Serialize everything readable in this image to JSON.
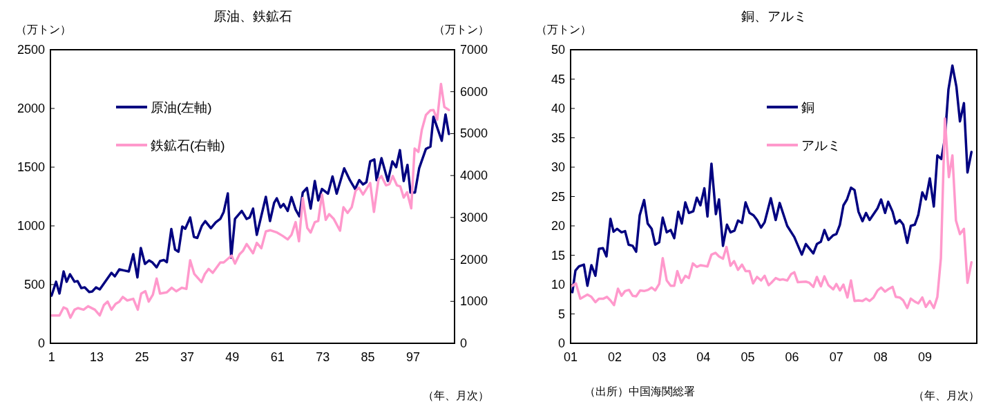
{
  "chart_data": [
    {
      "type": "line",
      "title": "原油、鉄鉱石",
      "ylabel": "（万トン）",
      "y2label": "（万トン）",
      "xlabel": "（年、月次）",
      "legend": "top left",
      "xlim": [
        0.7,
        108
      ],
      "xticks": [
        1,
        13,
        25,
        37,
        49,
        61,
        73,
        85,
        97
      ],
      "ylim": [
        0,
        2500
      ],
      "yticks": [
        0,
        500,
        1000,
        1500,
        2000,
        2500
      ],
      "y2lim": [
        0,
        7000
      ],
      "y2ticks": [
        0,
        1000,
        2000,
        3000,
        4000,
        5000,
        6000,
        7000
      ],
      "series": [
        {
          "name": "原油(左軸)",
          "color": "#000080",
          "x": [
            1,
            2.2,
            3.1,
            4.2,
            5,
            5.9,
            7.1,
            7.9,
            8.9,
            9.8,
            11,
            11.8,
            12.8,
            13.8,
            16.9,
            17.8,
            19,
            20.3,
            21.5,
            22.7,
            23.8,
            24.7,
            25.8,
            26.9,
            27.8,
            28.9,
            29.8,
            30.8,
            31.6,
            32.8,
            33.8,
            34.7,
            35.7,
            36.5,
            37.8,
            38.8,
            39.7,
            40.9,
            41.8,
            43.3,
            44.6,
            45.8,
            46.7,
            47.8,
            48.7,
            49.7,
            51.5,
            52.8,
            53.6,
            54.5,
            55.5,
            57.9,
            59,
            60.1,
            60.8,
            61.8,
            62.6,
            63.7,
            64.7,
            65.8,
            66.8,
            67.7,
            68.8,
            69.8,
            70.9,
            71.8,
            72.8,
            74.4,
            75.6,
            76.7,
            78.7,
            80.2,
            81.6,
            82.7,
            83.7,
            84.6,
            85.6,
            86.7,
            87.3,
            88.6,
            90.3,
            91.5,
            92.5,
            93.5,
            94.5,
            95.5,
            96.3,
            97.5,
            98.6,
            100.4,
            101.6,
            102.4,
            104.6,
            105.6,
            106.5
          ],
          "values": [
            406,
            524,
            424,
            612,
            524,
            588,
            524,
            530,
            470,
            476,
            437,
            441,
            476,
            459,
            600,
            570,
            629,
            620,
            612,
            759,
            561,
            812,
            676,
            706,
            688,
            647,
            700,
            710,
            690,
            973,
            798,
            780,
            994,
            975,
            1071,
            906,
            897,
            1000,
            1040,
            980,
            1030,
            1059,
            1118,
            1276,
            729,
            1059,
            1127,
            1059,
            1071,
            1147,
            924,
            1247,
            1041,
            1196,
            1235,
            1157,
            1186,
            1127,
            1245,
            1139,
            1081,
            1284,
            1323,
            1147,
            1382,
            1216,
            1314,
            1274,
            1421,
            1274,
            1490,
            1390,
            1314,
            1390,
            1353,
            1372,
            1549,
            1566,
            1390,
            1576,
            1382,
            1549,
            1500,
            1645,
            1382,
            1519,
            1284,
            1284,
            1490,
            1655,
            1675,
            1930,
            1725,
            1949,
            1782
          ]
        },
        {
          "name": "鉄鉱石(右軸)",
          "color": "#ff99cc",
          "axis": "y2",
          "x": [
            1,
            3.1,
            4.2,
            5.1,
            6,
            7.1,
            8,
            9.5,
            10.7,
            12.5,
            13.8,
            14.9,
            15.9,
            16.9,
            18,
            19,
            19.9,
            21.1,
            22.7,
            23.9,
            24.8,
            25.9,
            26.8,
            27.9,
            28.9,
            29.8,
            31.6,
            32.9,
            34.1,
            35.6,
            36.8,
            37.8,
            38.9,
            40.8,
            41.7,
            42.7,
            43.8,
            45.8,
            46.7,
            48.8,
            49.7,
            50.9,
            51.8,
            52.8,
            54.5,
            55.5,
            56.7,
            57.9,
            59.1,
            60.9,
            62.4,
            63.7,
            64.7,
            65.8,
            66.7,
            67.7,
            68.9,
            69.8,
            70.9,
            71.8,
            72.8,
            73.8,
            74.7,
            75.9,
            77.6,
            78.5,
            79.6,
            80.7,
            81.7,
            82.6,
            83.7,
            85.6,
            86.6,
            87.8,
            88.6,
            89.8,
            90.7,
            91.6,
            92.7,
            93.6,
            94.5,
            95.4,
            96.5,
            97.4,
            98.4,
            99.3,
            100.4,
            101.6,
            102.4,
            103.4,
            104.4,
            105.3,
            106.5
          ],
          "values": [
            664,
            664,
            857,
            818,
            610,
            801,
            840,
            801,
            884,
            801,
            664,
            912,
            994,
            801,
            939,
            994,
            1104,
            1021,
            1060,
            801,
            1186,
            1241,
            994,
            1159,
            1543,
            1186,
            1214,
            1324,
            1241,
            1324,
            1296,
            1982,
            1652,
            1460,
            1652,
            1773,
            1680,
            1927,
            1927,
            2092,
            1900,
            2120,
            2202,
            2367,
            2147,
            2394,
            2267,
            2668,
            2696,
            2641,
            2559,
            2476,
            2586,
            2888,
            2432,
            3465,
            2751,
            2641,
            2888,
            2916,
            3547,
            2943,
            3080,
            2970,
            2685,
            3245,
            3108,
            3245,
            3630,
            3712,
            3547,
            3822,
            3135,
            3905,
            3987,
            3767,
            3795,
            3987,
            3767,
            3740,
            3476,
            3602,
            3218,
            4646,
            4564,
            5086,
            5443,
            5553,
            5564,
            5333,
            6184,
            5635,
            5564
          ]
        }
      ]
    },
    {
      "type": "line",
      "title": "銅、アルミ",
      "ylabel": "（万トン）",
      "xlabel": "（年、月次）",
      "legend": "top",
      "annotations": [
        "（出所）中国海関総署"
      ],
      "xlim": [
        2001,
        2010.17
      ],
      "xticks": [
        {
          "value": 2001,
          "label": "01"
        },
        {
          "value": 2002,
          "label": "02"
        },
        {
          "value": 2003,
          "label": "03"
        },
        {
          "value": 2004,
          "label": "04"
        },
        {
          "value": 2005,
          "label": "05"
        },
        {
          "value": 2006,
          "label": "06"
        },
        {
          "value": 2007,
          "label": "07"
        },
        {
          "value": 2008,
          "label": "08"
        },
        {
          "value": 2009,
          "label": "09"
        }
      ],
      "ylim": [
        0,
        50
      ],
      "yticks": [
        0,
        5,
        10,
        15,
        20,
        25,
        30,
        35,
        40,
        45,
        50
      ],
      "series": [
        {
          "name": "銅",
          "color": "#000080",
          "x": [
            2001.04,
            2001.11,
            2001.19,
            2001.3,
            2001.38,
            2001.47,
            2001.56,
            2001.64,
            2001.73,
            2001.81,
            2001.9,
            2001.97,
            2002.05,
            2002.15,
            2002.23,
            2002.31,
            2002.4,
            2002.48,
            2002.56,
            2002.66,
            2002.74,
            2002.83,
            2002.91,
            2003.0,
            2003.08,
            2003.17,
            2003.26,
            2003.34,
            2003.43,
            2003.51,
            2003.59,
            2003.67,
            2003.77,
            2003.85,
            2003.93,
            2004.02,
            2004.09,
            2004.18,
            2004.28,
            2004.35,
            2004.44,
            2004.53,
            2004.61,
            2004.7,
            2004.78,
            2004.87,
            2004.95,
            2005.04,
            2005.13,
            2005.21,
            2005.3,
            2005.38,
            2005.52,
            2005.63,
            2005.72,
            2005.89,
            2006.05,
            2006.22,
            2006.31,
            2006.48,
            2006.56,
            2006.65,
            2006.73,
            2006.82,
            2006.93,
            2007.0,
            2007.08,
            2007.16,
            2007.24,
            2007.33,
            2007.41,
            2007.5,
            2007.59,
            2007.67,
            2007.75,
            2007.93,
            2008.01,
            2008.1,
            2008.17,
            2008.27,
            2008.34,
            2008.43,
            2008.51,
            2008.6,
            2008.68,
            2008.77,
            2008.85,
            2008.94,
            2009.02,
            2009.11,
            2009.2,
            2009.28,
            2009.37,
            2009.45,
            2009.53,
            2009.62,
            2009.71,
            2009.79,
            2009.88,
            2009.96,
            2010.05
          ],
          "values": [
            8.7,
            12.4,
            13.1,
            13.4,
            9.8,
            13.3,
            11.5,
            16.1,
            16.2,
            14.8,
            21.2,
            19.0,
            19.5,
            18.9,
            19.1,
            16.8,
            16.6,
            15.6,
            21.8,
            24.4,
            20.4,
            19.5,
            16.8,
            17.2,
            21.4,
            18.9,
            19.3,
            17.9,
            22.4,
            20.4,
            24.0,
            22.2,
            22.5,
            24.8,
            23.5,
            26.4,
            21.6,
            30.6,
            22.0,
            24.5,
            16.6,
            20.2,
            18.9,
            19.2,
            20.9,
            20.5,
            24.0,
            22.2,
            21.8,
            21.0,
            19.7,
            20.6,
            24.7,
            21.0,
            23.9,
            20.0,
            18.1,
            15.1,
            16.9,
            15.3,
            16.9,
            17.3,
            19.3,
            17.6,
            18.4,
            18.6,
            20.2,
            23.5,
            24.5,
            26.5,
            26.1,
            22.4,
            20.8,
            22.2,
            21.0,
            23.0,
            24.5,
            22.2,
            24.1,
            22.4,
            20.4,
            21.0,
            20.2,
            17.1,
            20.0,
            20.2,
            21.9,
            25.7,
            24.5,
            28.1,
            23.3,
            32.0,
            31.4,
            34.9,
            43.2,
            47.3,
            43.7,
            37.8,
            40.9,
            29.1,
            32.6
          ]
        },
        {
          "name": "アルミ",
          "color": "#ff99cc",
          "x": [
            2001.04,
            2001.12,
            2001.22,
            2001.38,
            2001.47,
            2001.56,
            2001.64,
            2001.74,
            2001.82,
            2001.9,
            2001.98,
            2002.07,
            2002.15,
            2002.23,
            2002.32,
            2002.4,
            2002.48,
            2002.57,
            2002.66,
            2002.75,
            2002.83,
            2002.91,
            2003.0,
            2003.08,
            2003.17,
            2003.26,
            2003.34,
            2003.41,
            2003.5,
            2003.59,
            2003.67,
            2003.76,
            2003.85,
            2003.93,
            2004.09,
            2004.18,
            2004.27,
            2004.35,
            2004.44,
            2004.52,
            2004.61,
            2004.69,
            2004.78,
            2004.87,
            2004.95,
            2005.04,
            2005.12,
            2005.21,
            2005.3,
            2005.38,
            2005.47,
            2005.53,
            2005.63,
            2005.72,
            2005.79,
            2005.89,
            2005.98,
            2006.05,
            2006.13,
            2006.31,
            2006.39,
            2006.48,
            2006.56,
            2006.65,
            2006.73,
            2006.82,
            2006.93,
            2007.0,
            2007.08,
            2007.16,
            2007.25,
            2007.33,
            2007.41,
            2007.5,
            2007.59,
            2007.67,
            2007.75,
            2007.84,
            2007.93,
            2008.01,
            2008.1,
            2008.17,
            2008.27,
            2008.34,
            2008.43,
            2008.51,
            2008.6,
            2008.68,
            2008.77,
            2008.85,
            2008.94,
            2009.02,
            2009.11,
            2009.2,
            2009.28,
            2009.36,
            2009.45,
            2009.54,
            2009.62,
            2009.7,
            2009.79,
            2009.88,
            2009.96,
            2010.05
          ],
          "values": [
            9.8,
            10.2,
            7.6,
            8.3,
            7.9,
            7.0,
            7.6,
            7.6,
            7.9,
            7.3,
            6.5,
            9.3,
            8.1,
            8.9,
            9.1,
            8.1,
            8.0,
            9.0,
            8.9,
            9.1,
            9.5,
            9.0,
            10.1,
            14.5,
            10.7,
            9.8,
            9.8,
            12.3,
            10.3,
            11.5,
            11.1,
            13.6,
            13.0,
            13.3,
            13.1,
            15.1,
            15.4,
            14.8,
            14.4,
            16.4,
            13.2,
            14.0,
            12.5,
            13.4,
            12.3,
            12.3,
            10.2,
            11.3,
            10.7,
            11.5,
            9.9,
            10.3,
            11.1,
            10.8,
            10.9,
            10.7,
            11.8,
            12.1,
            10.4,
            10.5,
            10.3,
            9.6,
            11.3,
            9.7,
            11.4,
            9.9,
            9.2,
            10.1,
            9.0,
            10.0,
            7.8,
            10.7,
            7.2,
            7.3,
            7.2,
            7.6,
            7.2,
            7.8,
            9.0,
            9.5,
            8.8,
            9.2,
            9.6,
            7.9,
            7.8,
            7.3,
            6.0,
            7.6,
            7.1,
            6.8,
            7.8,
            6.2,
            7.2,
            6.0,
            7.9,
            14.5,
            38.3,
            28.3,
            32.0,
            20.9,
            18.6,
            19.5,
            10.3,
            13.8
          ]
        }
      ]
    }
  ]
}
